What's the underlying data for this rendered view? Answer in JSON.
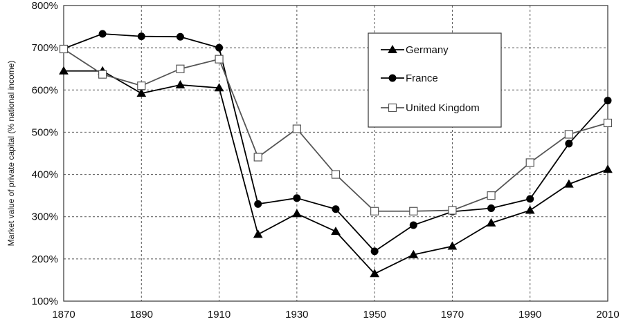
{
  "chart_data": {
    "type": "line",
    "title": "",
    "xlabel": "",
    "ylabel": "Market value of private capital (% national income)",
    "x": [
      1870,
      1880,
      1890,
      1900,
      1910,
      1920,
      1930,
      1940,
      1950,
      1960,
      1970,
      1980,
      1990,
      2000,
      2010
    ],
    "xticks": [
      1870,
      1890,
      1910,
      1930,
      1950,
      1970,
      1990,
      2010
    ],
    "xtick_labels": [
      "1870",
      "1890",
      "1910",
      "1930",
      "1950",
      "1970",
      "1990",
      "2010"
    ],
    "xlim": [
      1870,
      2010
    ],
    "ylim": [
      100,
      800
    ],
    "yticks": [
      100,
      200,
      300,
      400,
      500,
      600,
      700,
      800
    ],
    "ytick_labels": [
      "100%",
      "200%",
      "300%",
      "400%",
      "500%",
      "600%",
      "700%",
      "800%"
    ],
    "grid": true,
    "legend_position": "top-right",
    "series": [
      {
        "name": "Germany",
        "marker": "triangle",
        "color": "#000000",
        "values": [
          645,
          645,
          592,
          612,
          605,
          258,
          307,
          265,
          165,
          210,
          230,
          285,
          315,
          377,
          412
        ]
      },
      {
        "name": "France",
        "marker": "circle",
        "color": "#000000",
        "values": [
          698,
          733,
          727,
          726,
          700,
          330,
          344,
          318,
          218,
          280,
          312,
          320,
          342,
          473,
          575
        ]
      },
      {
        "name": "United Kingdom",
        "marker": "square-open",
        "color": "#555555",
        "values": [
          697,
          637,
          610,
          650,
          673,
          441,
          508,
          400,
          313,
          313,
          315,
          350,
          428,
          495,
          522
        ]
      }
    ]
  }
}
